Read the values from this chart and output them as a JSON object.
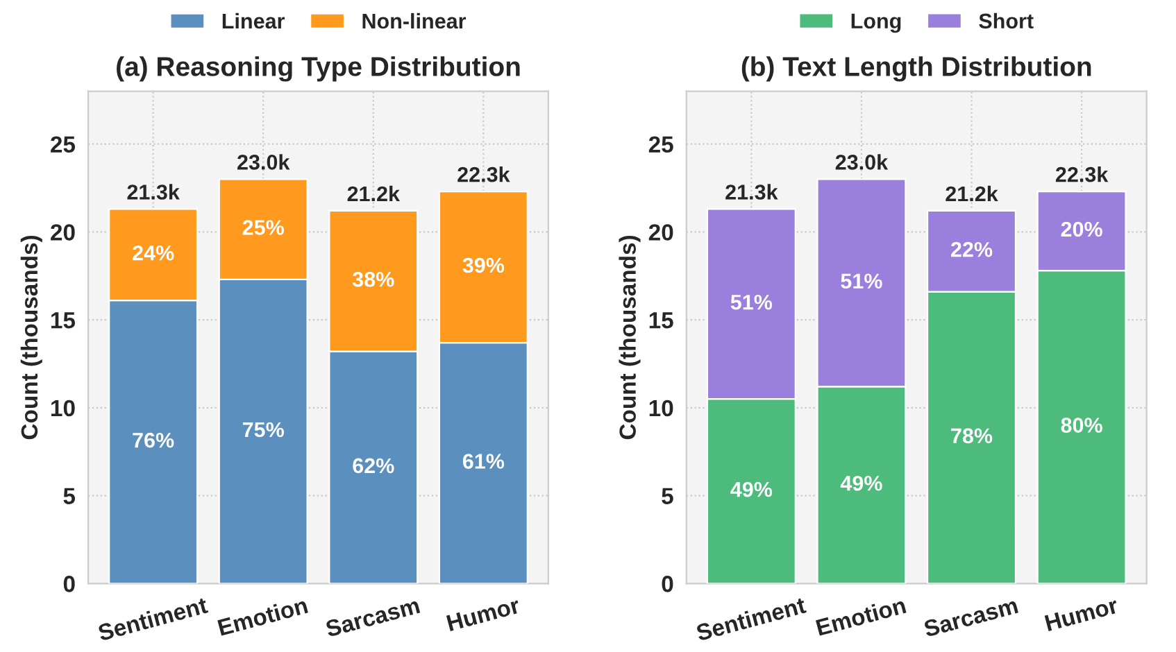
{
  "chart_data": [
    {
      "type": "bar",
      "title": "(a) Reasoning Type Distribution",
      "ylabel": "Count (thousands)",
      "categories": [
        "Sentiment",
        "Emotion",
        "Sarcasm",
        "Humor"
      ],
      "stacked": true,
      "ylim": [
        0,
        28
      ],
      "yticks": [
        0,
        5,
        10,
        15,
        20,
        25
      ],
      "grid": true,
      "legend": "top",
      "series": [
        {
          "name": "Linear",
          "color": "#5b8fbd",
          "values": [
            16.1,
            17.3,
            13.2,
            13.7
          ]
        },
        {
          "name": "Non-linear",
          "color": "#ff9a1f",
          "values": [
            5.2,
            5.7,
            8.0,
            8.6
          ]
        }
      ],
      "annotations": [
        "76%",
        "75%",
        "62%",
        "61%",
        "24%",
        "25%",
        "38%",
        "39%"
      ],
      "totals": [
        "21.3k",
        "23.0k",
        "21.2k",
        "22.3k"
      ]
    },
    {
      "type": "bar",
      "title": "(b) Text Length Distribution",
      "ylabel": "Count (thousands)",
      "categories": [
        "Sentiment",
        "Emotion",
        "Sarcasm",
        "Humor"
      ],
      "stacked": true,
      "ylim": [
        0,
        28
      ],
      "yticks": [
        0,
        5,
        10,
        15,
        20,
        25
      ],
      "grid": true,
      "legend": "top",
      "series": [
        {
          "name": "Long",
          "color": "#4dbb7c",
          "values": [
            10.5,
            11.2,
            16.6,
            17.8
          ]
        },
        {
          "name": "Short",
          "color": "#9b7fdc",
          "values": [
            10.8,
            11.8,
            4.6,
            4.5
          ]
        }
      ],
      "annotations": [
        "49%",
        "49%",
        "78%",
        "80%",
        "51%",
        "51%",
        "22%",
        "20%"
      ],
      "totals": [
        "21.3k",
        "23.0k",
        "21.2k",
        "22.3k"
      ]
    }
  ]
}
